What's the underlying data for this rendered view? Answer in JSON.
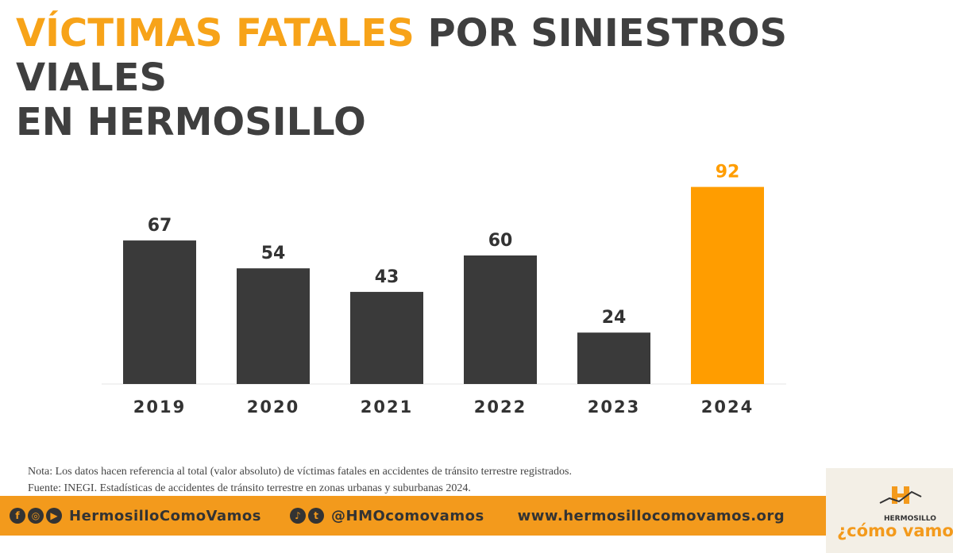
{
  "title": {
    "highlight": "VÍCTIMAS FATALES",
    "rest": " POR SINIESTROS VIALES",
    "line2": "EN HERMOSILLO"
  },
  "colors": {
    "bar": "#3a3a3a",
    "highlight_bar": "#ff9d00",
    "title_highlight": "#f7a319",
    "title_text": "#3f3f3f",
    "footer": "#f39a1c"
  },
  "chart_data": {
    "type": "bar",
    "categories": [
      "2019",
      "2020",
      "2021",
      "2022",
      "2023",
      "2024"
    ],
    "values": [
      67,
      54,
      43,
      60,
      24,
      92
    ],
    "data_labels": [
      "67",
      "54",
      "43",
      "60",
      "24",
      "92"
    ],
    "highlight_index": 5,
    "ylim": [
      0,
      100
    ],
    "grid": false,
    "axis_visible": false
  },
  "notes": {
    "nota": "Nota: Los datos hacen referencia al total (valor absoluto) de víctimas fatales en accidentes de tránsito terrestre registrados.",
    "fuente": "Fuente: INEGI. Estadísticas de accidentes de tránsito terrestre en zonas urbanas y suburbanas 2024."
  },
  "footer": {
    "icons_group1": [
      "facebook-icon",
      "instagram-icon",
      "youtube-icon"
    ],
    "handle1": "HermosilloComoVamos",
    "icons_group2": [
      "tiktok-icon",
      "twitter-icon"
    ],
    "handle2": "@HMOcomovamos",
    "website": "www.hermosillocomovamos.org"
  },
  "logo": {
    "small": "HERMOSILLO",
    "big": "¿cómo vamos?"
  }
}
